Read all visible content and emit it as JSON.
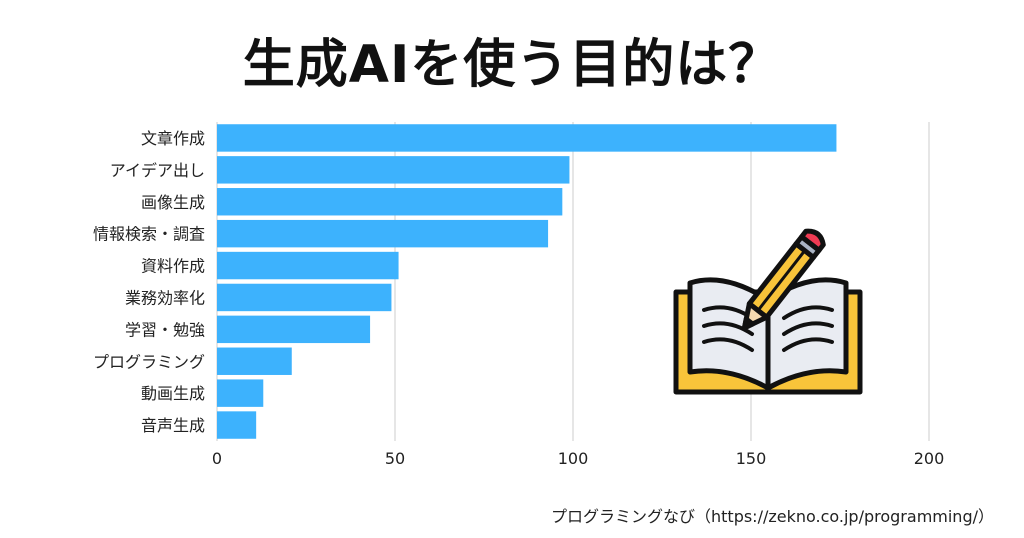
{
  "chart_data": {
    "type": "bar",
    "orientation": "horizontal",
    "title": "生成AIを使う目的は？",
    "categories": [
      "文章作成",
      "アイデア出し",
      "画像生成",
      "情報検索・調査",
      "資料作成",
      "業務効率化",
      "学習・勉強",
      "プログラミング",
      "動画生成",
      "音声生成"
    ],
    "values": [
      174,
      99,
      97,
      93,
      51,
      49,
      43,
      21,
      13,
      11
    ],
    "xlim": [
      0,
      200
    ],
    "xticks": [
      0,
      50,
      100,
      150,
      200
    ],
    "grid": true,
    "bar_color": "#3db2fd",
    "illustration": "open-book-with-pencil-icon"
  },
  "source": "プログラミングなび（https://zekno.co.jp/programming/）"
}
